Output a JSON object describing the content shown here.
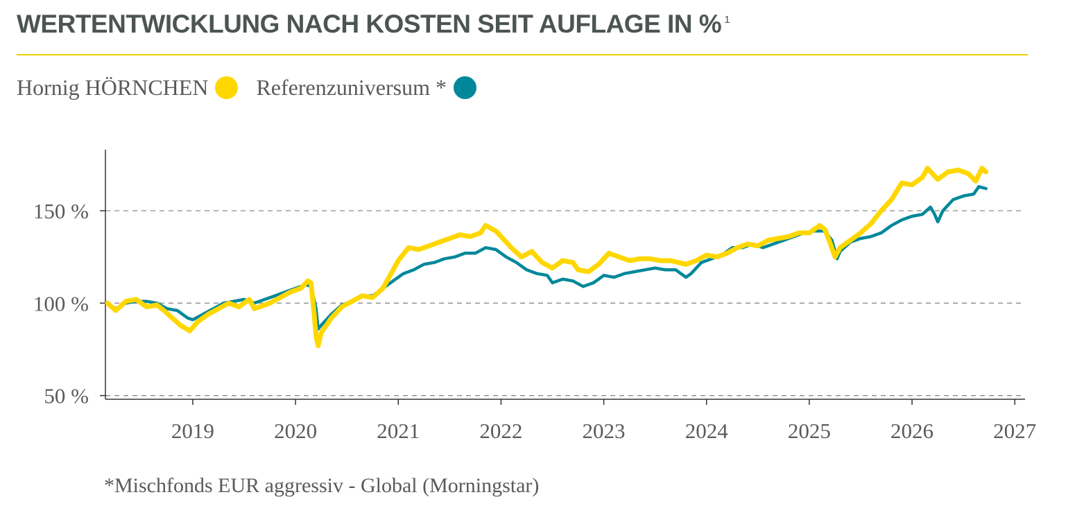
{
  "header": {
    "title": "WERTENTWICKLUNG NACH KOSTEN SEIT AUFLAGE IN %",
    "title_sup": "1"
  },
  "legend": [
    {
      "label": "Hornig HÖRNCHEN",
      "color": "#ffd700"
    },
    {
      "label": "Referenzuniversum *",
      "color": "#00889a"
    }
  ],
  "footnote": "*Mischfonds EUR aggressiv - Global (Morningstar)",
  "chart_data": {
    "type": "line",
    "title": "WERTENTWICKLUNG NACH KOSTEN SEIT AUFLAGE IN %",
    "xlabel": "",
    "ylabel": "",
    "xlim": [
      2018.15,
      2027.1
    ],
    "ylim": [
      48,
      183
    ],
    "x_ticks": [
      2019,
      2020,
      2021,
      2022,
      2023,
      2024,
      2025,
      2026,
      2027
    ],
    "x_tick_labels": [
      "2019",
      "2020",
      "2021",
      "2022",
      "2023",
      "2024",
      "2025",
      "2026",
      "2027"
    ],
    "y_ticks": [
      50,
      100,
      150
    ],
    "y_tick_labels": [
      "50 %",
      "100 %",
      "150 %"
    ],
    "grid": "horizontal-dashed",
    "legend_position": "top-left",
    "series": [
      {
        "name": "Hornig HÖRNCHEN",
        "color": "#ffd700",
        "points": [
          [
            2018.17,
            100
          ],
          [
            2018.25,
            96
          ],
          [
            2018.35,
            101
          ],
          [
            2018.45,
            102
          ],
          [
            2018.55,
            98
          ],
          [
            2018.65,
            99
          ],
          [
            2018.72,
            96
          ],
          [
            2018.8,
            92
          ],
          [
            2018.88,
            88
          ],
          [
            2018.97,
            85
          ],
          [
            2019.05,
            90
          ],
          [
            2019.15,
            94
          ],
          [
            2019.25,
            97
          ],
          [
            2019.35,
            100
          ],
          [
            2019.45,
            98
          ],
          [
            2019.55,
            102
          ],
          [
            2019.6,
            97
          ],
          [
            2019.65,
            98
          ],
          [
            2019.75,
            100
          ],
          [
            2019.85,
            103
          ],
          [
            2019.95,
            106
          ],
          [
            2020.05,
            108
          ],
          [
            2020.12,
            112
          ],
          [
            2020.15,
            111
          ],
          [
            2020.18,
            95
          ],
          [
            2020.2,
            82
          ],
          [
            2020.22,
            77
          ],
          [
            2020.25,
            84
          ],
          [
            2020.35,
            92
          ],
          [
            2020.45,
            98
          ],
          [
            2020.55,
            101
          ],
          [
            2020.65,
            104
          ],
          [
            2020.75,
            103
          ],
          [
            2020.85,
            108
          ],
          [
            2020.92,
            115
          ],
          [
            2021.0,
            123
          ],
          [
            2021.1,
            130
          ],
          [
            2021.2,
            129
          ],
          [
            2021.3,
            131
          ],
          [
            2021.4,
            133
          ],
          [
            2021.5,
            135
          ],
          [
            2021.6,
            137
          ],
          [
            2021.7,
            136
          ],
          [
            2021.8,
            138
          ],
          [
            2021.85,
            142
          ],
          [
            2021.95,
            139
          ],
          [
            2022.0,
            136
          ],
          [
            2022.1,
            130
          ],
          [
            2022.2,
            125
          ],
          [
            2022.3,
            128
          ],
          [
            2022.4,
            122
          ],
          [
            2022.5,
            119
          ],
          [
            2022.6,
            123
          ],
          [
            2022.7,
            122
          ],
          [
            2022.75,
            118
          ],
          [
            2022.85,
            117
          ],
          [
            2022.95,
            121
          ],
          [
            2023.05,
            127
          ],
          [
            2023.15,
            125
          ],
          [
            2023.25,
            123
          ],
          [
            2023.35,
            124
          ],
          [
            2023.45,
            124
          ],
          [
            2023.55,
            123
          ],
          [
            2023.65,
            123
          ],
          [
            2023.8,
            121
          ],
          [
            2023.9,
            123
          ],
          [
            2024.0,
            126
          ],
          [
            2024.1,
            125
          ],
          [
            2024.2,
            127
          ],
          [
            2024.3,
            130
          ],
          [
            2024.4,
            132
          ],
          [
            2024.5,
            131
          ],
          [
            2024.6,
            134
          ],
          [
            2024.7,
            135
          ],
          [
            2024.8,
            136
          ],
          [
            2024.9,
            138
          ],
          [
            2025.0,
            138
          ],
          [
            2025.1,
            142
          ],
          [
            2025.15,
            140
          ],
          [
            2025.2,
            133
          ],
          [
            2025.25,
            125
          ],
          [
            2025.3,
            130
          ],
          [
            2025.4,
            134
          ],
          [
            2025.5,
            138
          ],
          [
            2025.6,
            143
          ],
          [
            2025.7,
            150
          ],
          [
            2025.8,
            156
          ],
          [
            2025.9,
            165
          ],
          [
            2026.0,
            164
          ],
          [
            2026.1,
            168
          ],
          [
            2026.15,
            173
          ],
          [
            2026.25,
            167
          ],
          [
            2026.35,
            171
          ],
          [
            2026.45,
            172
          ],
          [
            2026.55,
            170
          ],
          [
            2026.62,
            166
          ],
          [
            2026.68,
            173
          ],
          [
            2026.72,
            171
          ]
        ]
      },
      {
        "name": "Referenzuniversum *",
        "color": "#00889a",
        "points": [
          [
            2018.17,
            100
          ],
          [
            2018.25,
            97
          ],
          [
            2018.35,
            100
          ],
          [
            2018.45,
            101
          ],
          [
            2018.55,
            101
          ],
          [
            2018.65,
            100
          ],
          [
            2018.75,
            97
          ],
          [
            2018.85,
            96
          ],
          [
            2018.95,
            92
          ],
          [
            2019.0,
            91
          ],
          [
            2019.1,
            94
          ],
          [
            2019.2,
            97
          ],
          [
            2019.3,
            100
          ],
          [
            2019.4,
            101
          ],
          [
            2019.5,
            102
          ],
          [
            2019.6,
            100
          ],
          [
            2019.7,
            102
          ],
          [
            2019.8,
            104
          ],
          [
            2019.9,
            106
          ],
          [
            2020.0,
            108
          ],
          [
            2020.1,
            110
          ],
          [
            2020.15,
            109
          ],
          [
            2020.2,
            97
          ],
          [
            2020.22,
            86
          ],
          [
            2020.25,
            88
          ],
          [
            2020.35,
            94
          ],
          [
            2020.45,
            99
          ],
          [
            2020.55,
            101
          ],
          [
            2020.65,
            104
          ],
          [
            2020.75,
            104
          ],
          [
            2020.85,
            108
          ],
          [
            2020.95,
            112
          ],
          [
            2021.05,
            116
          ],
          [
            2021.15,
            118
          ],
          [
            2021.25,
            121
          ],
          [
            2021.35,
            122
          ],
          [
            2021.45,
            124
          ],
          [
            2021.55,
            125
          ],
          [
            2021.65,
            127
          ],
          [
            2021.75,
            127
          ],
          [
            2021.85,
            130
          ],
          [
            2021.95,
            129
          ],
          [
            2022.05,
            125
          ],
          [
            2022.15,
            122
          ],
          [
            2022.25,
            118
          ],
          [
            2022.35,
            116
          ],
          [
            2022.45,
            115
          ],
          [
            2022.5,
            111
          ],
          [
            2022.6,
            113
          ],
          [
            2022.7,
            112
          ],
          [
            2022.8,
            109
          ],
          [
            2022.9,
            111
          ],
          [
            2023.0,
            115
          ],
          [
            2023.1,
            114
          ],
          [
            2023.2,
            116
          ],
          [
            2023.3,
            117
          ],
          [
            2023.4,
            118
          ],
          [
            2023.5,
            119
          ],
          [
            2023.6,
            118
          ],
          [
            2023.7,
            118
          ],
          [
            2023.8,
            114
          ],
          [
            2023.85,
            116
          ],
          [
            2023.95,
            122
          ],
          [
            2024.05,
            124
          ],
          [
            2024.15,
            126
          ],
          [
            2024.25,
            130
          ],
          [
            2024.35,
            130
          ],
          [
            2024.45,
            132
          ],
          [
            2024.55,
            130
          ],
          [
            2024.65,
            132
          ],
          [
            2024.75,
            134
          ],
          [
            2024.85,
            136
          ],
          [
            2024.95,
            138
          ],
          [
            2025.05,
            139
          ],
          [
            2025.15,
            139
          ],
          [
            2025.22,
            134
          ],
          [
            2025.27,
            124
          ],
          [
            2025.3,
            128
          ],
          [
            2025.4,
            133
          ],
          [
            2025.5,
            135
          ],
          [
            2025.6,
            136
          ],
          [
            2025.7,
            138
          ],
          [
            2025.8,
            142
          ],
          [
            2025.9,
            145
          ],
          [
            2026.0,
            147
          ],
          [
            2026.1,
            148
          ],
          [
            2026.18,
            152
          ],
          [
            2026.22,
            148
          ],
          [
            2026.25,
            144
          ],
          [
            2026.3,
            150
          ],
          [
            2026.4,
            156
          ],
          [
            2026.5,
            158
          ],
          [
            2026.6,
            159
          ],
          [
            2026.65,
            163
          ],
          [
            2026.72,
            162
          ]
        ]
      }
    ]
  }
}
